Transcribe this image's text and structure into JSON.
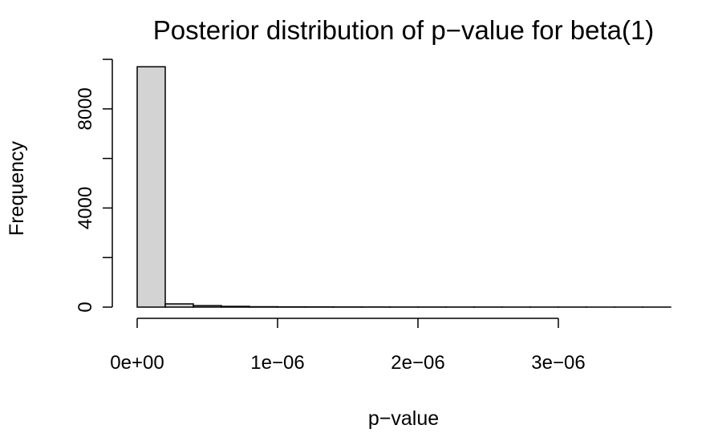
{
  "chart_data": {
    "type": "bar",
    "title": "Posterior distribution of p−value for beta(1)",
    "xlabel": "p−value",
    "ylabel": "Frequency",
    "bin_width": 2e-07,
    "bins": [
      {
        "x0": 0,
        "x1": 2e-07,
        "count": 9700
      },
      {
        "x0": 2e-07,
        "x1": 4e-07,
        "count": 130
      },
      {
        "x0": 4e-07,
        "x1": 6e-07,
        "count": 60
      },
      {
        "x0": 6e-07,
        "x1": 8e-07,
        "count": 30
      },
      {
        "x0": 8e-07,
        "x1": 1e-06,
        "count": 15
      },
      {
        "x0": 1e-06,
        "x1": 1.2e-06,
        "count": 10
      },
      {
        "x0": 1.2e-06,
        "x1": 1.4e-06,
        "count": 8
      },
      {
        "x0": 1.4e-06,
        "x1": 1.6e-06,
        "count": 6
      },
      {
        "x0": 1.6e-06,
        "x1": 1.8e-06,
        "count": 5
      },
      {
        "x0": 1.8e-06,
        "x1": 2e-06,
        "count": 4
      },
      {
        "x0": 2e-06,
        "x1": 2.2e-06,
        "count": 4
      },
      {
        "x0": 2.2e-06,
        "x1": 2.4e-06,
        "count": 3
      },
      {
        "x0": 2.4e-06,
        "x1": 2.6e-06,
        "count": 3
      },
      {
        "x0": 2.6e-06,
        "x1": 2.8e-06,
        "count": 2
      },
      {
        "x0": 2.8e-06,
        "x1": 3e-06,
        "count": 2
      },
      {
        "x0": 3e-06,
        "x1": 3.2e-06,
        "count": 2
      },
      {
        "x0": 3.2e-06,
        "x1": 3.4e-06,
        "count": 1
      },
      {
        "x0": 3.4e-06,
        "x1": 3.6e-06,
        "count": 1
      },
      {
        "x0": 3.6e-06,
        "x1": 3.8e-06,
        "count": 1
      }
    ],
    "xlim": [
      0,
      3.8e-06
    ],
    "ylim": [
      0,
      10000
    ],
    "x_ticks": [
      {
        "value": 0,
        "label": "0e+00"
      },
      {
        "value": 1e-06,
        "label": "1e−06"
      },
      {
        "value": 2e-06,
        "label": "2e−06"
      },
      {
        "value": 3e-06,
        "label": "3e−06"
      }
    ],
    "y_ticks": [
      {
        "value": 0,
        "label": "0"
      },
      {
        "value": 2000,
        "label": ""
      },
      {
        "value": 4000,
        "label": "4000"
      },
      {
        "value": 6000,
        "label": ""
      },
      {
        "value": 8000,
        "label": "8000"
      },
      {
        "value": 10000,
        "label": ""
      }
    ],
    "grid": false,
    "legend": "none",
    "colors": {
      "bar_fill": "#d3d3d3",
      "bar_stroke": "#000000"
    }
  }
}
